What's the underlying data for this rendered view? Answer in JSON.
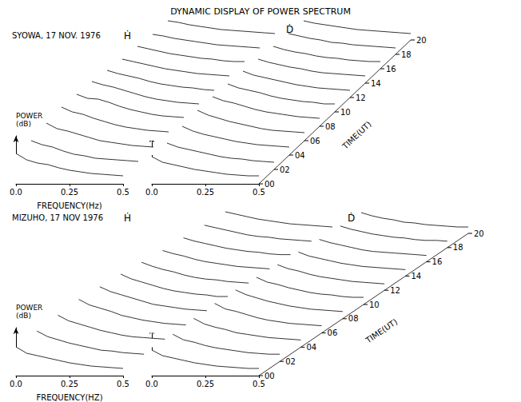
{
  "title": "DYNAMIC DISPLAY OF POWER SPECTRUM",
  "chart_data": [
    {
      "type": "waterfall",
      "subtitle": "SYOWA, 17 NOV. 1976",
      "title": "Ḣ",
      "xlabel": "FREQUENCY(Hz)",
      "ylabel": "POWER (dB)",
      "x": [
        0,
        0.05,
        0.1,
        0.15,
        0.2,
        0.25,
        0.3,
        0.35,
        0.4,
        0.45,
        0.5
      ],
      "xlim": [
        0,
        0.5
      ],
      "xticks": [
        {
          "value": 0,
          "label": "0.0"
        },
        0.25,
        {
          "value": 0.5,
          "label": "0.5"
        }
      ],
      "ylim": [
        0,
        60
      ],
      "zlim": [
        0,
        20
      ],
      "grid": false,
      "tick_labels": "x",
      "series": [
        {
          "time": 0,
          "values": [
            38,
            30,
            26,
            24,
            20,
            17,
            15,
            13,
            12,
            11,
            10
          ]
        },
        {
          "time": 2,
          "values": [
            36,
            31,
            28,
            23,
            19,
            17,
            14,
            13,
            12,
            11,
            10
          ]
        },
        {
          "time": 4,
          "values": [
            40,
            33,
            30,
            26,
            22,
            18,
            16,
            14,
            12,
            11,
            10
          ]
        },
        {
          "time": 6,
          "values": [
            42,
            36,
            33,
            28,
            24,
            20,
            17,
            15,
            13,
            12,
            11
          ]
        },
        {
          "time": 8,
          "values": [
            40,
            35,
            34,
            30,
            25,
            21,
            18,
            15,
            13,
            12,
            11
          ]
        },
        {
          "time": 10,
          "values": [
            38,
            34,
            31,
            27,
            23,
            19,
            16,
            14,
            12,
            11,
            10
          ]
        },
        {
          "time": 12,
          "values": [
            34,
            30,
            27,
            24,
            20,
            17,
            15,
            13,
            12,
            10,
            9
          ]
        },
        {
          "time": 14,
          "values": [
            30,
            27,
            24,
            21,
            18,
            16,
            14,
            12,
            11,
            10,
            9
          ]
        },
        {
          "time": 16,
          "values": [
            28,
            25,
            22,
            19,
            17,
            15,
            13,
            12,
            10,
            9,
            9
          ]
        },
        {
          "time": 18,
          "values": [
            25,
            23,
            20,
            18,
            16,
            14,
            12,
            11,
            10,
            9,
            8
          ]
        },
        {
          "time": 20,
          "values": [
            24,
            22,
            19,
            17,
            15,
            13,
            12,
            11,
            10,
            9,
            8
          ]
        }
      ]
    },
    {
      "type": "waterfall",
      "title": "Ḋ",
      "zlabel": "TIME(UT)",
      "x": [
        0,
        0.05,
        0.1,
        0.15,
        0.2,
        0.25,
        0.3,
        0.35,
        0.4,
        0.45,
        0.5
      ],
      "xlim": [
        0,
        0.5
      ],
      "xticks": [
        {
          "value": 0,
          "label": "0.0"
        },
        0.25,
        {
          "value": 0.5,
          "label": "0.5"
        }
      ],
      "ylim": [
        0,
        60
      ],
      "zlim": [
        0,
        20
      ],
      "zticks": [
        {
          "value": 0,
          "label": "00"
        },
        {
          "value": 2,
          "label": "02"
        },
        {
          "value": 4,
          "label": "04"
        },
        {
          "value": 6,
          "label": "06"
        },
        {
          "value": 8,
          "label": "08"
        },
        10,
        12,
        14,
        16,
        18,
        20
      ],
      "grid": false,
      "tick_labels": "x",
      "series": [
        {
          "time": 0,
          "values": [
            34,
            27,
            24,
            21,
            18,
            16,
            14,
            12,
            11,
            10,
            10
          ]
        },
        {
          "time": 2,
          "values": [
            33,
            28,
            25,
            22,
            19,
            16,
            14,
            13,
            11,
            10,
            9
          ]
        },
        {
          "time": 4,
          "values": [
            36,
            30,
            26,
            23,
            20,
            17,
            15,
            13,
            12,
            11,
            10
          ]
        },
        {
          "time": 6,
          "values": [
            38,
            32,
            28,
            24,
            21,
            18,
            15,
            13,
            12,
            11,
            10
          ]
        },
        {
          "time": 8,
          "values": [
            37,
            32,
            29,
            25,
            21,
            18,
            16,
            14,
            12,
            11,
            10
          ]
        },
        {
          "time": 10,
          "values": [
            35,
            30,
            27,
            24,
            20,
            17,
            15,
            13,
            12,
            10,
            10
          ]
        },
        {
          "time": 12,
          "values": [
            33,
            28,
            25,
            22,
            19,
            16,
            14,
            12,
            11,
            10,
            9
          ]
        },
        {
          "time": 14,
          "values": [
            30,
            26,
            23,
            20,
            18,
            15,
            13,
            12,
            11,
            10,
            9
          ]
        },
        {
          "time": 16,
          "values": [
            28,
            24,
            21,
            19,
            16,
            14,
            13,
            11,
            10,
            9,
            9
          ]
        },
        {
          "time": 18,
          "values": [
            26,
            23,
            20,
            18,
            15,
            14,
            12,
            11,
            10,
            9,
            8
          ]
        },
        {
          "time": 20,
          "values": [
            24,
            21,
            19,
            17,
            15,
            13,
            12,
            11,
            10,
            9,
            8
          ]
        }
      ]
    },
    {
      "type": "waterfall",
      "subtitle": "MIZUHO, 17 NOV 1976",
      "title": "Ḣ",
      "xlabel": "FREQUENCY(HZ)",
      "ylabel": "POWER (dB)",
      "x": [
        0,
        0.05,
        0.1,
        0.15,
        0.2,
        0.25,
        0.3,
        0.35,
        0.4,
        0.45,
        0.5
      ],
      "xlim": [
        0,
        0.5
      ],
      "xticks": [
        {
          "value": 0,
          "label": "0.0"
        },
        0.25,
        {
          "value": 0.5,
          "label": "0.5"
        }
      ],
      "ylim": [
        0,
        60
      ],
      "zlim": [
        0,
        20
      ],
      "grid": false,
      "tick_labels": "x",
      "series": [
        {
          "time": 0,
          "values": [
            36,
            28,
            25,
            22,
            19,
            16,
            14,
            12,
            11,
            10,
            9
          ]
        },
        {
          "time": 2,
          "values": [
            38,
            31,
            27,
            23,
            20,
            17,
            14,
            13,
            11,
            10,
            9
          ]
        },
        {
          "time": 4,
          "values": [
            40,
            33,
            29,
            25,
            21,
            18,
            15,
            13,
            12,
            11,
            10
          ]
        },
        {
          "time": 6,
          "values": [
            42,
            35,
            31,
            27,
            22,
            19,
            16,
            14,
            12,
            11,
            10
          ]
        },
        {
          "time": 8,
          "values": [
            40,
            34,
            30,
            26,
            22,
            18,
            16,
            14,
            12,
            11,
            10
          ]
        },
        {
          "time": 10,
          "values": [
            38,
            32,
            28,
            24,
            20,
            17,
            15,
            13,
            12,
            10,
            10
          ]
        },
        {
          "time": 12,
          "values": [
            35,
            30,
            26,
            23,
            19,
            16,
            14,
            13,
            11,
            10,
            9
          ]
        },
        {
          "time": 14,
          "values": [
            32,
            28,
            25,
            21,
            18,
            16,
            14,
            12,
            11,
            10,
            9
          ]
        },
        {
          "time": 16,
          "values": [
            30,
            26,
            23,
            20,
            17,
            15,
            13,
            12,
            10,
            9,
            9
          ]
        },
        {
          "time": 18,
          "values": [
            28,
            25,
            22,
            19,
            16,
            14,
            13,
            11,
            10,
            9,
            8
          ]
        },
        {
          "time": 20,
          "values": [
            27,
            24,
            21,
            18,
            16,
            14,
            12,
            11,
            10,
            9,
            8
          ]
        }
      ]
    },
    {
      "type": "waterfall",
      "title": "Ḋ",
      "zlabel": "TIME(UT)",
      "x": [
        0,
        0.05,
        0.1,
        0.15,
        0.2,
        0.25,
        0.3,
        0.35,
        0.4,
        0.45,
        0.5
      ],
      "xlim": [
        0,
        0.5
      ],
      "xticks": [
        {
          "value": 0,
          "label": "0.0"
        },
        0.25,
        {
          "value": 0.5,
          "label": "0.5"
        }
      ],
      "ylim": [
        0,
        60
      ],
      "zlim": [
        0,
        20
      ],
      "zticks": [
        {
          "value": 0,
          "label": "00"
        },
        {
          "value": 2,
          "label": "02"
        },
        {
          "value": 4,
          "label": "04"
        },
        {
          "value": 6,
          "label": "06"
        },
        {
          "value": 8,
          "label": "08"
        },
        10,
        12,
        14,
        16,
        18,
        20
      ],
      "grid": false,
      "tick_labels": "x",
      "series": [
        {
          "time": 0,
          "values": [
            32,
            25,
            22,
            19,
            16,
            14,
            12,
            11,
            10,
            9,
            9
          ]
        },
        {
          "time": 2,
          "values": [
            34,
            27,
            24,
            20,
            17,
            15,
            13,
            11,
            10,
            9,
            9
          ]
        },
        {
          "time": 4,
          "values": [
            36,
            29,
            25,
            22,
            18,
            16,
            14,
            12,
            11,
            10,
            9
          ]
        },
        {
          "time": 6,
          "values": [
            37,
            30,
            27,
            23,
            19,
            16,
            14,
            12,
            11,
            10,
            9
          ]
        },
        {
          "time": 8,
          "values": [
            36,
            30,
            26,
            22,
            19,
            16,
            14,
            12,
            11,
            10,
            9
          ]
        },
        {
          "time": 10,
          "values": [
            34,
            28,
            25,
            21,
            18,
            15,
            13,
            12,
            10,
            9,
            9
          ]
        },
        {
          "time": 12,
          "values": [
            32,
            27,
            24,
            20,
            17,
            15,
            13,
            11,
            10,
            9,
            8
          ]
        },
        {
          "time": 14,
          "values": [
            30,
            25,
            22,
            19,
            16,
            14,
            12,
            11,
            10,
            9,
            8
          ]
        },
        {
          "time": 16,
          "values": [
            28,
            24,
            21,
            18,
            15,
            13,
            12,
            11,
            10,
            9,
            8
          ]
        },
        {
          "time": 18,
          "values": [
            27,
            23,
            20,
            17,
            15,
            13,
            12,
            10,
            9,
            9,
            8
          ]
        },
        {
          "time": 20,
          "values": [
            26,
            22,
            19,
            17,
            14,
            13,
            11,
            10,
            9,
            8,
            8
          ]
        }
      ]
    }
  ]
}
